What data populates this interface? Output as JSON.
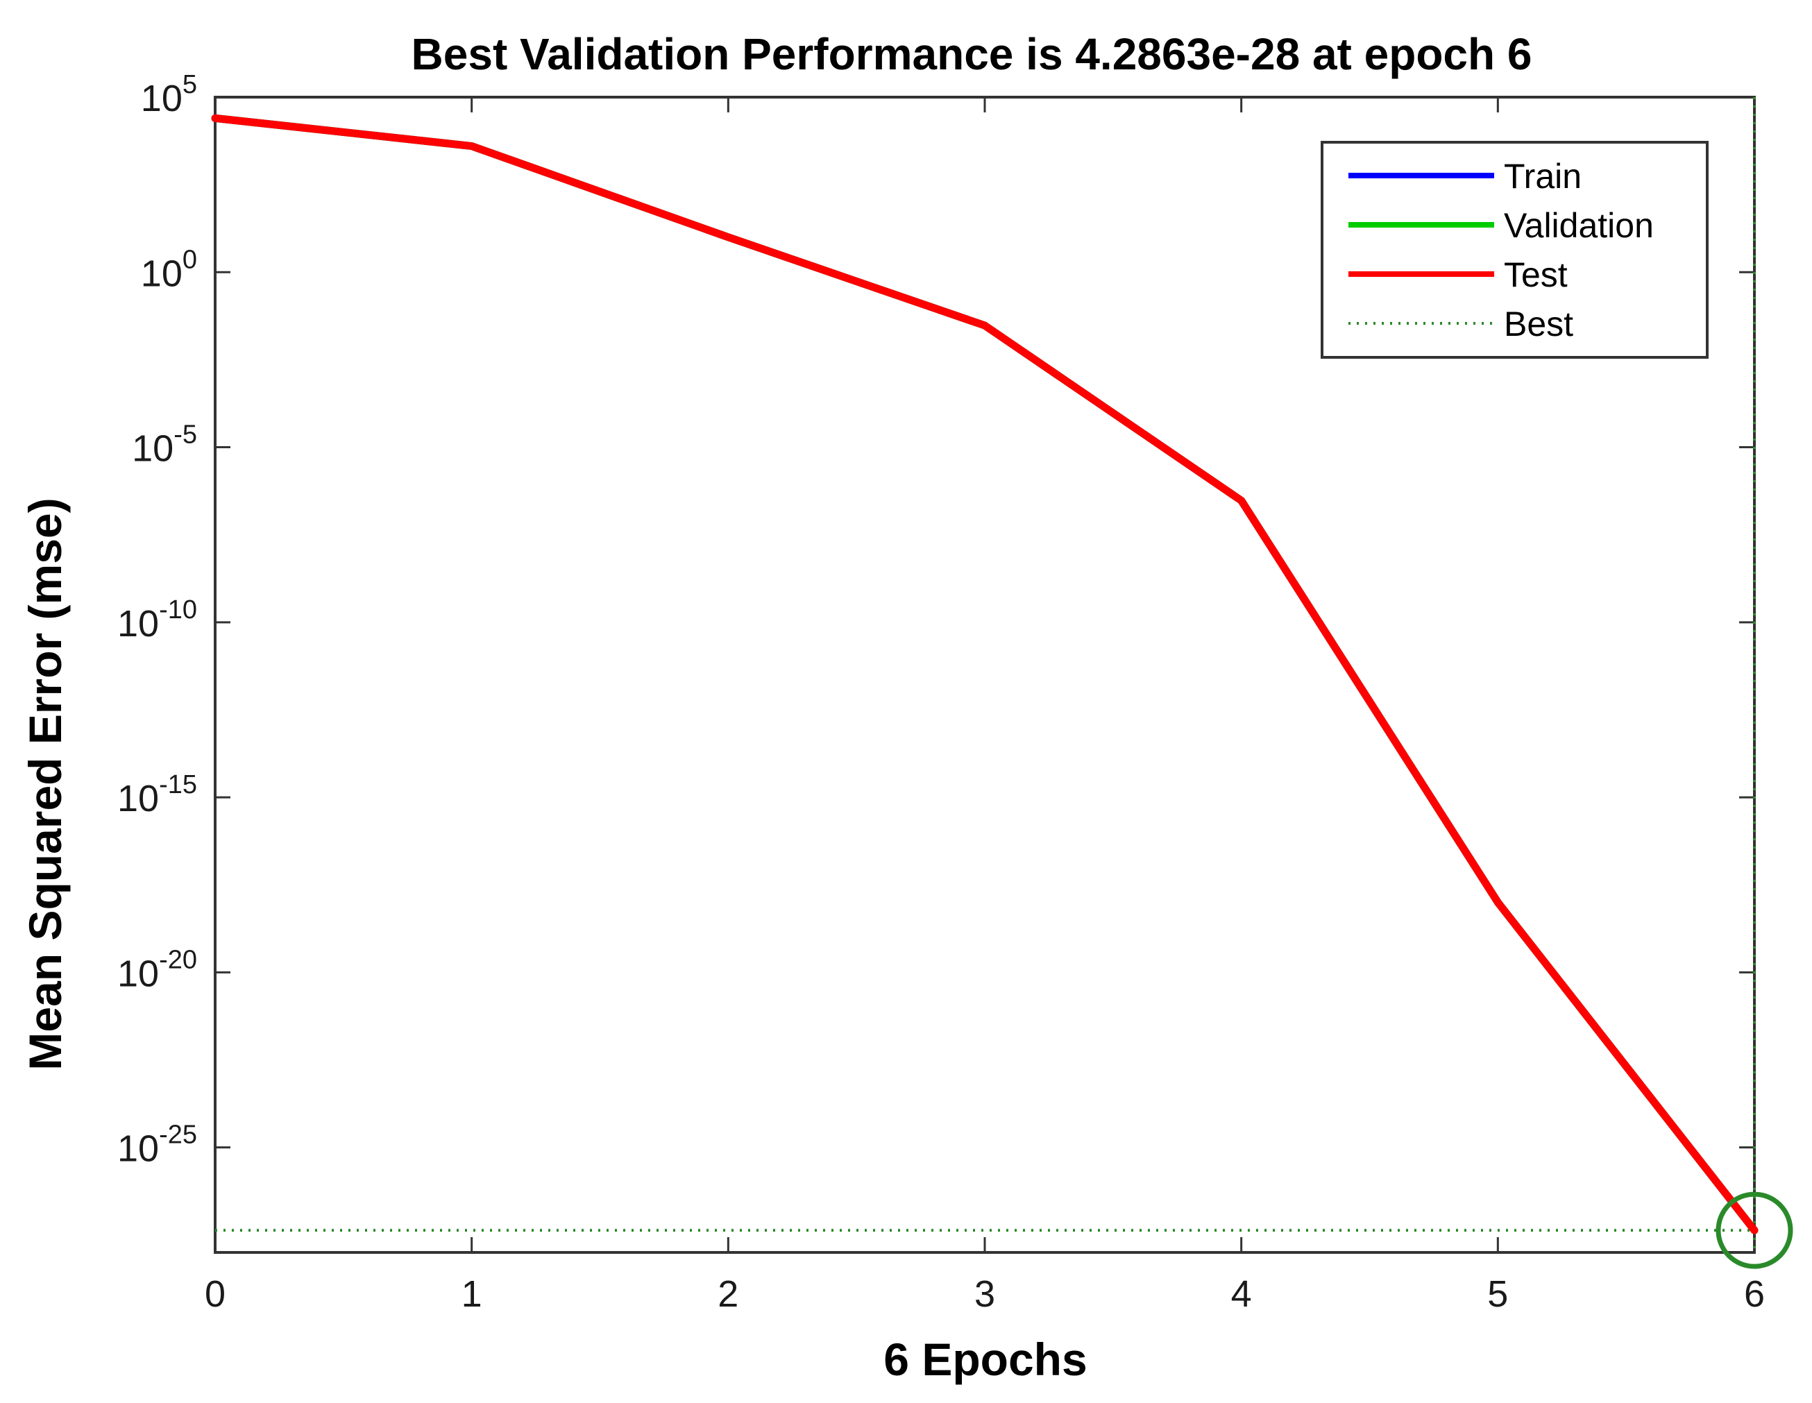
{
  "chart_data": {
    "type": "line",
    "title": "Best Validation Performance is 4.2863e-28 at epoch 6",
    "xlabel": "6 Epochs",
    "ylabel": "Mean Squared Error  (mse)",
    "x": [
      0,
      1,
      2,
      3,
      4,
      5,
      6
    ],
    "xlim": [
      0,
      6
    ],
    "yscale": "log",
    "ylim": [
      1e-28,
      100000.0
    ],
    "x_ticks": [
      "0",
      "1",
      "2",
      "3",
      "4",
      "5",
      "6"
    ],
    "y_ticks": [
      {
        "base": "10",
        "exp": "5",
        "value": 100000.0
      },
      {
        "base": "10",
        "exp": "0",
        "value": 1
      },
      {
        "base": "10",
        "exp": "-5",
        "value": 1e-05
      },
      {
        "base": "10",
        "exp": "-10",
        "value": 1e-10
      },
      {
        "base": "10",
        "exp": "-15",
        "value": 1e-15
      },
      {
        "base": "10",
        "exp": "-20",
        "value": 1e-20
      },
      {
        "base": "10",
        "exp": "-25",
        "value": 1e-25
      }
    ],
    "series": [
      {
        "name": "Train",
        "color": "#0000ff",
        "values": [
          25000,
          4000,
          10,
          0.03,
          3e-07,
          1e-18,
          4.2863e-28
        ]
      },
      {
        "name": "Validation",
        "color": "#00cc00",
        "values": [
          25000,
          4000,
          10,
          0.03,
          3e-07,
          1e-18,
          4.2863e-28
        ]
      },
      {
        "name": "Test",
        "color": "#ff0000",
        "values": [
          25000,
          4000,
          10,
          0.03,
          3e-07,
          1e-18,
          4.2863e-28
        ]
      }
    ],
    "best": {
      "label": "Best",
      "epoch": 6,
      "value": 4.2863e-28,
      "color": "#2a8a2a",
      "style": "dotted"
    },
    "legend": {
      "position": "top-right",
      "entries": [
        "Train",
        "Validation",
        "Test",
        "Best"
      ]
    },
    "grid": false
  }
}
